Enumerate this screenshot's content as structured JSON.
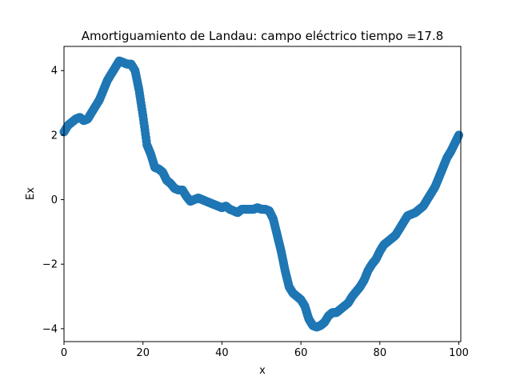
{
  "chart_data": {
    "type": "scatter",
    "title": "Amortiguamiento de Landau: campo eléctrico  tiempo =17.8",
    "xlabel": "x",
    "ylabel": "Ex",
    "xlim": [
      0,
      100.5
    ],
    "ylim": [
      -4.4,
      4.75
    ],
    "xticks": [
      0,
      20,
      40,
      60,
      80,
      100
    ],
    "yticks": [
      -4,
      -2,
      0,
      2,
      4
    ],
    "xtick_labels": [
      "0",
      "20",
      "40",
      "60",
      "80",
      "100"
    ],
    "ytick_labels": [
      "−4",
      "−2",
      "0",
      "2",
      "4"
    ],
    "grid": false,
    "color": "#1f77b4",
    "series": [
      {
        "x": [
          0,
          1,
          2,
          3,
          4,
          5,
          6,
          7,
          8,
          9,
          10,
          11,
          12,
          13,
          14,
          15,
          16,
          17,
          18,
          19,
          20,
          21,
          22,
          23,
          24,
          25,
          26,
          27,
          28,
          29,
          30,
          31,
          32,
          33,
          34,
          35,
          36,
          37,
          38,
          39,
          40,
          41,
          42,
          43,
          44,
          45,
          46,
          47,
          48,
          49,
          50,
          51,
          52,
          53,
          54,
          55,
          56,
          57,
          58,
          59,
          60,
          61,
          62,
          63,
          64,
          65,
          66,
          67,
          68,
          69,
          70,
          71,
          72,
          73,
          74,
          75,
          76,
          77,
          78,
          79,
          80,
          81,
          82,
          83,
          84,
          85,
          86,
          87,
          88,
          89,
          90,
          91,
          92,
          93,
          94,
          95,
          96,
          97,
          98,
          99,
          100
        ],
        "y": [
          2.1,
          2.3,
          2.4,
          2.5,
          2.55,
          2.45,
          2.5,
          2.7,
          2.9,
          3.1,
          3.4,
          3.7,
          3.9,
          4.1,
          4.3,
          4.25,
          4.2,
          4.2,
          4.0,
          3.4,
          2.6,
          1.7,
          1.4,
          1.0,
          0.95,
          0.85,
          0.6,
          0.5,
          0.35,
          0.3,
          0.3,
          0.1,
          -0.05,
          0.0,
          0.05,
          0.0,
          -0.05,
          -0.1,
          -0.15,
          -0.2,
          -0.25,
          -0.2,
          -0.3,
          -0.35,
          -0.4,
          -0.3,
          -0.3,
          -0.3,
          -0.3,
          -0.25,
          -0.3,
          -0.3,
          -0.35,
          -0.6,
          -1.1,
          -1.6,
          -2.2,
          -2.7,
          -2.9,
          -3.0,
          -3.1,
          -3.3,
          -3.7,
          -3.9,
          -3.95,
          -3.9,
          -3.8,
          -3.6,
          -3.5,
          -3.5,
          -3.4,
          -3.3,
          -3.2,
          -3.0,
          -2.85,
          -2.7,
          -2.5,
          -2.2,
          -2.0,
          -1.85,
          -1.6,
          -1.4,
          -1.3,
          -1.2,
          -1.1,
          -0.9,
          -0.7,
          -0.5,
          -0.45,
          -0.4,
          -0.3,
          -0.2,
          0.0,
          0.2,
          0.4,
          0.7,
          1.0,
          1.3,
          1.5,
          1.75,
          2.0
        ]
      }
    ]
  }
}
